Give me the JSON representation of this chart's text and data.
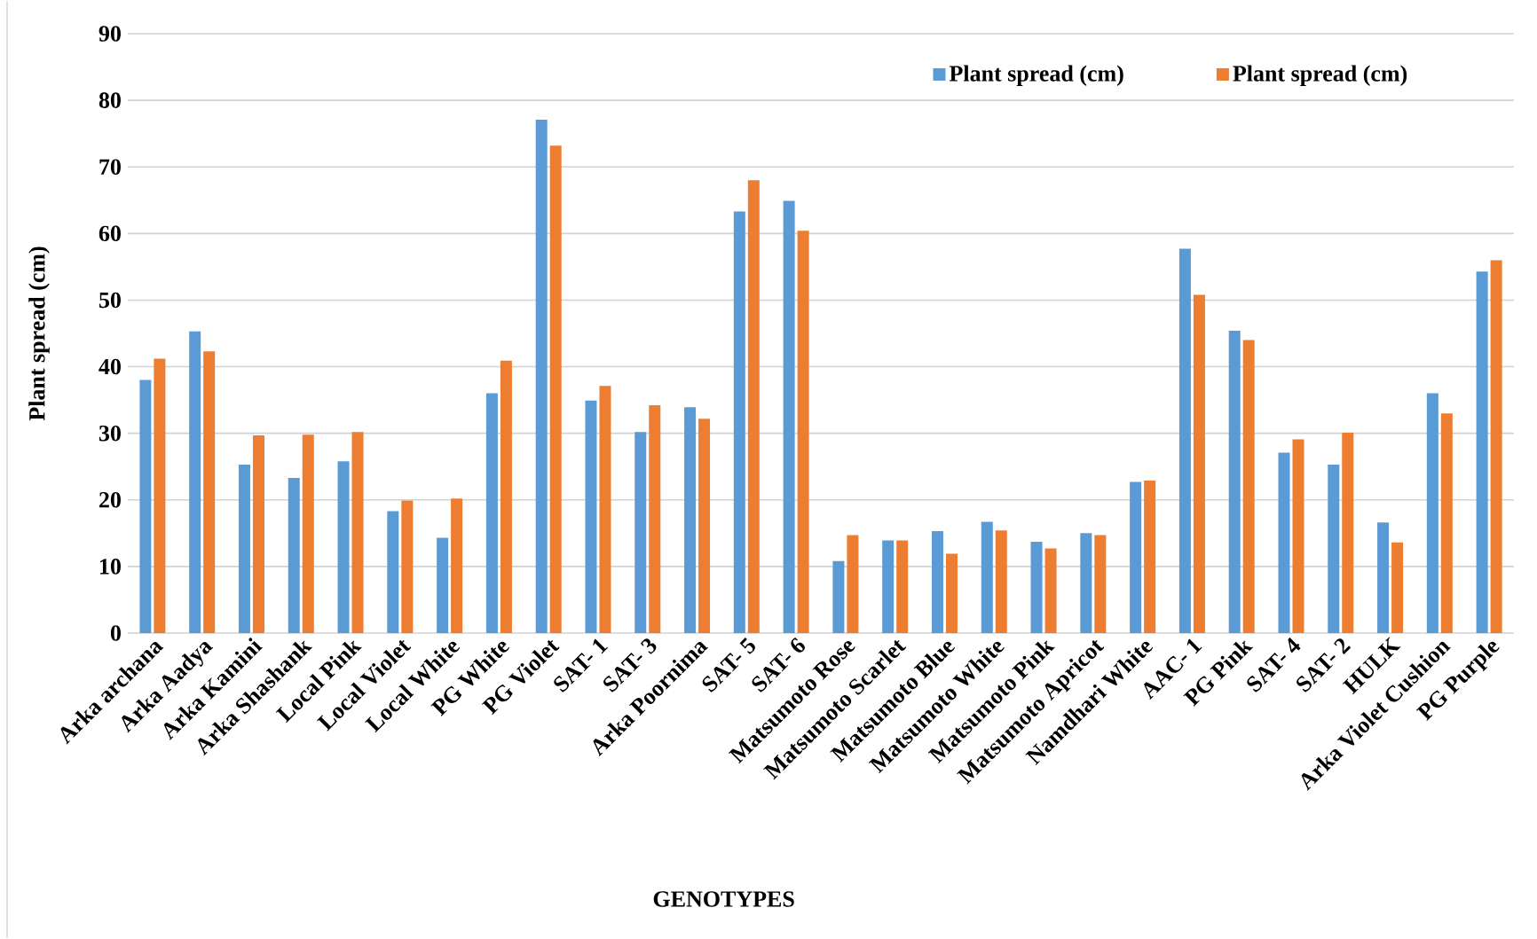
{
  "chart_data": {
    "type": "bar",
    "xlabel": "GENOTYPES",
    "ylabel": "Plant spread (cm)",
    "categories": [
      "Arka archana",
      "Arka Aadya",
      "Arka Kamini",
      "Arka Shashank",
      "Local Pink",
      "Local Violet",
      "Local White",
      "PG White",
      "PG Violet",
      "SAT- 1",
      "SAT- 3",
      "Arka Poornima",
      "SAT- 5",
      "SAT- 6",
      "Matsumoto Rose",
      "Matsumoto Scarlet",
      "Matsumoto Blue",
      "Matsumoto White",
      "Matsumoto Pink",
      "Matsumoto Apricot",
      "Namdhari White",
      "AAC- 1",
      "PG Pink",
      "SAT- 4",
      "SAT- 2",
      "HULK",
      "Arka Violet Cushion",
      "PG Purple"
    ],
    "series": [
      {
        "name": "Plant spread (cm)",
        "color": "#5b9bd5",
        "values": [
          38.0,
          45.3,
          25.3,
          23.3,
          25.8,
          18.3,
          14.3,
          36.0,
          77.1,
          34.9,
          30.2,
          33.9,
          63.3,
          64.9,
          10.8,
          13.9,
          15.3,
          16.7,
          13.7,
          15.0,
          22.7,
          57.7,
          45.4,
          27.1,
          25.3,
          16.6,
          36.0,
          54.3
        ]
      },
      {
        "name": "Plant spread (cm)",
        "color": "#ed7d31",
        "values": [
          41.2,
          42.3,
          29.7,
          29.8,
          30.2,
          19.9,
          20.2,
          40.9,
          73.2,
          37.1,
          34.2,
          32.2,
          68.0,
          60.4,
          14.7,
          13.9,
          11.9,
          15.4,
          12.7,
          14.7,
          22.9,
          50.8,
          44.0,
          29.1,
          30.1,
          13.6,
          33.0,
          56.0
        ]
      }
    ],
    "ylim": [
      0,
      90
    ],
    "yticks": [
      0,
      10,
      20,
      30,
      40,
      50,
      60,
      70,
      80,
      90
    ],
    "grid": "y",
    "legend": "top right"
  }
}
